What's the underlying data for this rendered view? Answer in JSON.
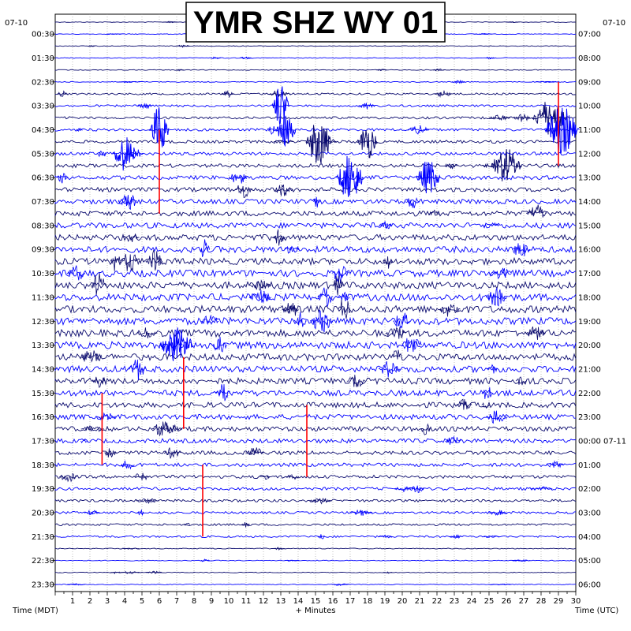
{
  "chart_data": {
    "type": "line",
    "title": "YMR SHZ WY 01",
    "date_left": "07-10",
    "date_right": "07-10",
    "left_axis_label": "Time (MDT)",
    "right_axis_label": "Time (UTC)",
    "xlabel": "+ Minutes",
    "xlim": [
      0,
      30
    ],
    "x_ticks": [
      "1",
      "2",
      "3",
      "4",
      "5",
      "6",
      "7",
      "8",
      "9",
      "10",
      "11",
      "12",
      "13",
      "14",
      "15",
      "16",
      "17",
      "18",
      "19",
      "20",
      "21",
      "22",
      "23",
      "24",
      "25",
      "26",
      "27",
      "28",
      "29",
      "30"
    ],
    "left_hour_labels": [
      "00:30",
      "01:30",
      "02:30",
      "03:30",
      "04:30",
      "05:30",
      "06:30",
      "07:30",
      "08:30",
      "09:30",
      "10:30",
      "11:30",
      "12:30",
      "13:30",
      "14:30",
      "15:30",
      "16:30",
      "17:30",
      "18:30",
      "19:30",
      "20:30",
      "21:30",
      "22:30",
      "23:30"
    ],
    "right_hour_labels": [
      "07:00",
      "08:00",
      "09:00",
      "10:00",
      "11:00",
      "12:00",
      "13:00",
      "14:00",
      "15:00",
      "16:00",
      "17:00",
      "18:00",
      "19:00",
      "20:00",
      "21:00",
      "22:00",
      "23:00",
      "00:00 07-11",
      "01:00",
      "02:00",
      "03:00",
      "04:00",
      "05:00",
      "06:00"
    ],
    "traces_per_hour": 2,
    "trace_colors": [
      "#0b0b6e",
      "#0000ff"
    ],
    "clip_color": "#ff0000",
    "grid": "dotted vertical per minute"
  }
}
